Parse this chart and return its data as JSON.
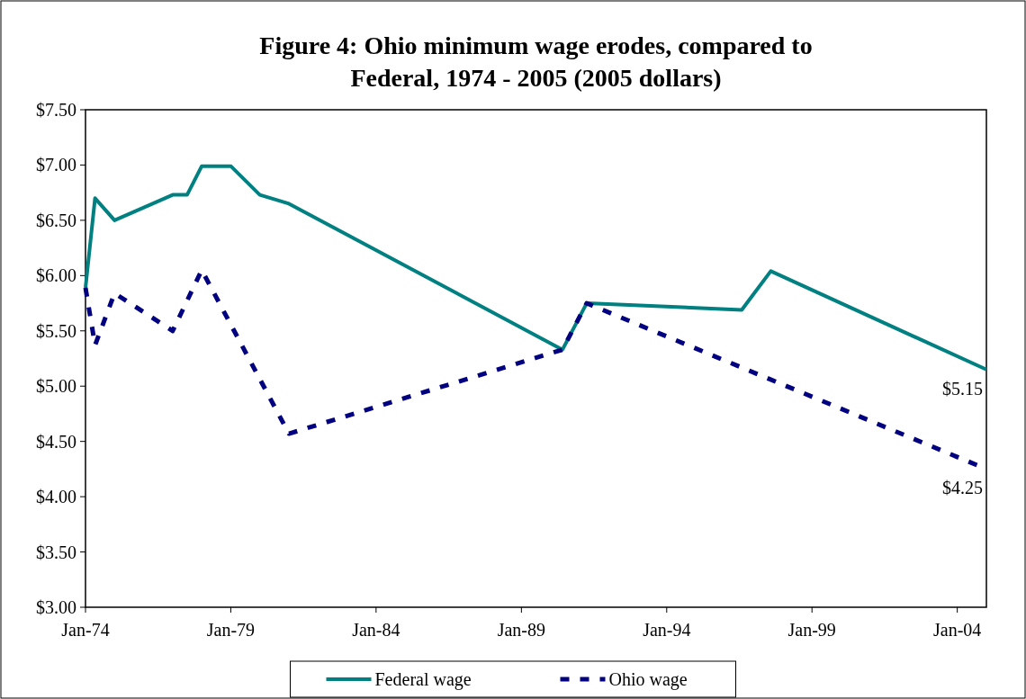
{
  "chart_data": {
    "type": "line",
    "title": "Figure 4: Ohio minimum wage erodes, compared to Federal, 1974 - 2005 (2005 dollars)",
    "xlim": [
      "1974-01",
      "2005-01"
    ],
    "xticks": [
      {
        "value": "1974-01",
        "label": "Jan-74"
      },
      {
        "value": "1979-01",
        "label": "Jan-79"
      },
      {
        "value": "1984-01",
        "label": "Jan-84"
      },
      {
        "value": "1989-01",
        "label": "Jan-89"
      },
      {
        "value": "1994-01",
        "label": "Jan-94"
      },
      {
        "value": "1999-01",
        "label": "Jan-99"
      },
      {
        "value": "2004-01",
        "label": "Jan-04"
      }
    ],
    "ylim": [
      3,
      7.5
    ],
    "yticks": [
      {
        "value": 3,
        "label": "$3.00"
      },
      {
        "value": 3.5,
        "label": "$3.50"
      },
      {
        "value": 4,
        "label": "$4.00"
      },
      {
        "value": 4.5,
        "label": "$4.50"
      },
      {
        "value": 5,
        "label": "$5.00"
      },
      {
        "value": 5.5,
        "label": "$5.50"
      },
      {
        "value": 6,
        "label": "$6.00"
      },
      {
        "value": 6.5,
        "label": "$6.50"
      },
      {
        "value": 7,
        "label": "$7.00"
      },
      {
        "value": 7.5,
        "label": "$7.50"
      }
    ],
    "grid": false,
    "legend": "bottom",
    "marker": "none",
    "series": [
      {
        "name": "Federal wage",
        "color": "#008080",
        "line_style": "solid",
        "x": [
          "1974-01",
          "1974-05",
          "1975-01",
          "1977-01",
          "1977-07",
          "1978-01",
          "1979-01",
          "1980-01",
          "1981-01",
          "1990-06",
          "1991-04",
          "1996-08",
          "1997-08",
          "2005-01"
        ],
        "values": [
          5.89,
          6.7,
          6.5,
          6.73,
          6.73,
          6.99,
          6.99,
          6.73,
          6.65,
          5.33,
          5.75,
          5.69,
          6.04,
          5.15
        ],
        "value_labels": [
          null,
          null,
          null,
          null,
          null,
          null,
          null,
          null,
          null,
          null,
          null,
          null,
          null,
          "$5.15"
        ]
      },
      {
        "name": "Ohio wage",
        "color": "#000080",
        "line_style": "dashed",
        "x": [
          "1974-01",
          "1974-05",
          "1975-01",
          "1977-01",
          "1978-01",
          "1981-01",
          "1990-06",
          "1991-04",
          "2005-01"
        ],
        "values": [
          5.89,
          5.37,
          5.84,
          5.5,
          6.05,
          4.57,
          5.33,
          5.75,
          4.25
        ],
        "value_labels": [
          null,
          null,
          null,
          null,
          null,
          null,
          null,
          null,
          "$4.25"
        ]
      }
    ]
  }
}
